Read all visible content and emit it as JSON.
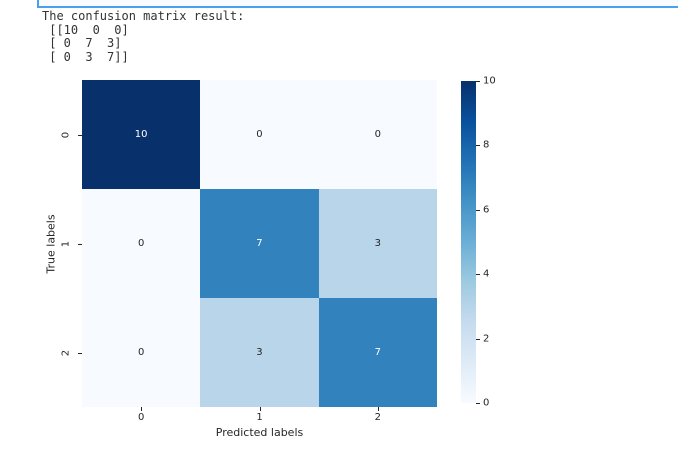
{
  "editor": {
    "cell_border_color": "#4aa0ec"
  },
  "console": {
    "text_color": "#333333",
    "lines": [
      "The confusion matrix result:",
      " [[10  0  0]",
      " [ 0  7  3]",
      " [ 0  3  7]]"
    ]
  },
  "chart_data": {
    "type": "heatmap",
    "title": "",
    "xlabel": "Predicted labels",
    "ylabel": "True labels",
    "x_categories": [
      "0",
      "1",
      "2"
    ],
    "y_categories": [
      "0",
      "1",
      "2"
    ],
    "matrix": [
      [
        10,
        0,
        0
      ],
      [
        0,
        7,
        3
      ],
      [
        0,
        3,
        7
      ]
    ],
    "vmin": 0,
    "vmax": 10,
    "colormap": "Blues",
    "grid": false,
    "colorbar_position": "right",
    "colorbar_ticks": [
      0,
      2,
      4,
      6,
      8,
      10
    ],
    "colorbar_gradient": [
      "#f7fbff",
      "#deebf7",
      "#c6dbef",
      "#9ecae1",
      "#6baed6",
      "#4292c6",
      "#2171b5",
      "#08519c",
      "#08306b"
    ],
    "cell_colors": [
      [
        "#08306b",
        "#f7fbff",
        "#f7fbff"
      ],
      [
        "#f7fbff",
        "#3182bd",
        "#b8d5ea"
      ],
      [
        "#f7fbff",
        "#b8d5ea",
        "#3182bd"
      ]
    ],
    "annot_colors": [
      [
        "#ffffff",
        "#262626",
        "#262626"
      ],
      [
        "#262626",
        "#ffffff",
        "#262626"
      ],
      [
        "#262626",
        "#262626",
        "#ffffff"
      ]
    ],
    "axis_text_color": "#262626"
  }
}
